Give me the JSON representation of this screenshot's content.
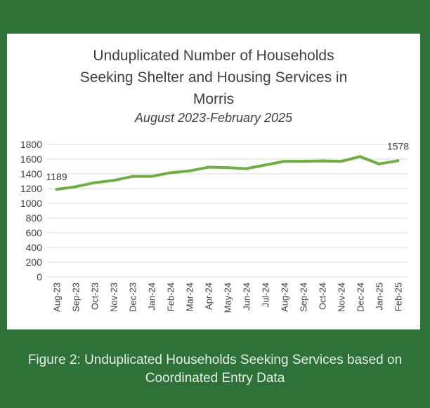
{
  "chart_data": {
    "type": "line",
    "title": "Unduplicated Number of Households\nSeeking Shelter and Housing Services in\nMorris",
    "subtitle": "August 2023-February 2025",
    "categories": [
      "Aug-23",
      "Sep-23",
      "Oct-23",
      "Nov-23",
      "Dec-23",
      "Jan-24",
      "Feb-24",
      "Mar-24",
      "Apr-24",
      "May-24",
      "Jun-24",
      "Jul-24",
      "Aug-24",
      "Sep-24",
      "Oct-24",
      "Nov-24",
      "Dec-24",
      "Jan-25",
      "Feb-25"
    ],
    "values": [
      1189,
      1225,
      1280,
      1310,
      1365,
      1365,
      1415,
      1440,
      1490,
      1485,
      1470,
      1520,
      1570,
      1570,
      1575,
      1570,
      1635,
      1535,
      1578
    ],
    "data_labels": {
      "first": "1189",
      "last": "1578"
    },
    "yticks": [
      0,
      200,
      400,
      600,
      800,
      1000,
      1200,
      1400,
      1600,
      1800
    ],
    "ylim": [
      0,
      1800
    ],
    "grid": true,
    "line_color": "#70ad47"
  },
  "caption": "Figure 2: Unduplicated Households Seeking Services based on Coordinated Entry Data"
}
